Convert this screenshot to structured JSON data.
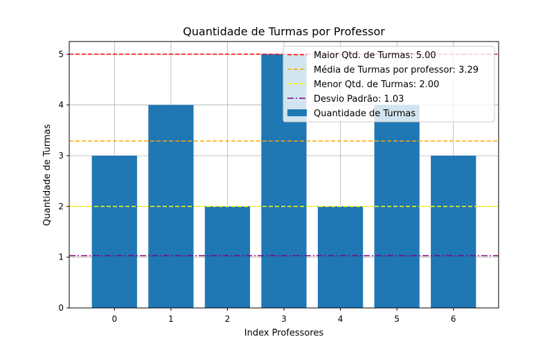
{
  "chart_data": {
    "type": "bar",
    "title": "Quantidade de Turmas por Professor",
    "xlabel": "Index Professores",
    "ylabel": "Quantidade de Turmas",
    "categories": [
      "0",
      "1",
      "2",
      "3",
      "4",
      "5",
      "6"
    ],
    "values": [
      3,
      4,
      2,
      5,
      2,
      4,
      3
    ],
    "ylim": [
      0,
      5.25
    ],
    "xlim": [
      -0.8,
      6.8
    ],
    "yticks": [
      0,
      1,
      2,
      3,
      4,
      5
    ],
    "grid": true,
    "bar_color": "#1f77b4",
    "series_name": "Quantidade de Turmas",
    "reference_lines": [
      {
        "name": "Maior Qtd. de Turmas: 5.00",
        "value": 5.0,
        "color": "#ff0000",
        "style": "dashed"
      },
      {
        "name": "Média de Turmas por professor: 3.29",
        "value": 3.29,
        "color": "#ffa500",
        "style": "dashed"
      },
      {
        "name": "Menor Qtd. de Turmas: 2.00",
        "value": 2.0,
        "color": "#ffff00",
        "style": "dashed"
      },
      {
        "name": "Desvio Padrão: 1.03",
        "value": 1.03,
        "color": "#800080",
        "style": "dashdot"
      }
    ],
    "legend_position": "top-right"
  }
}
